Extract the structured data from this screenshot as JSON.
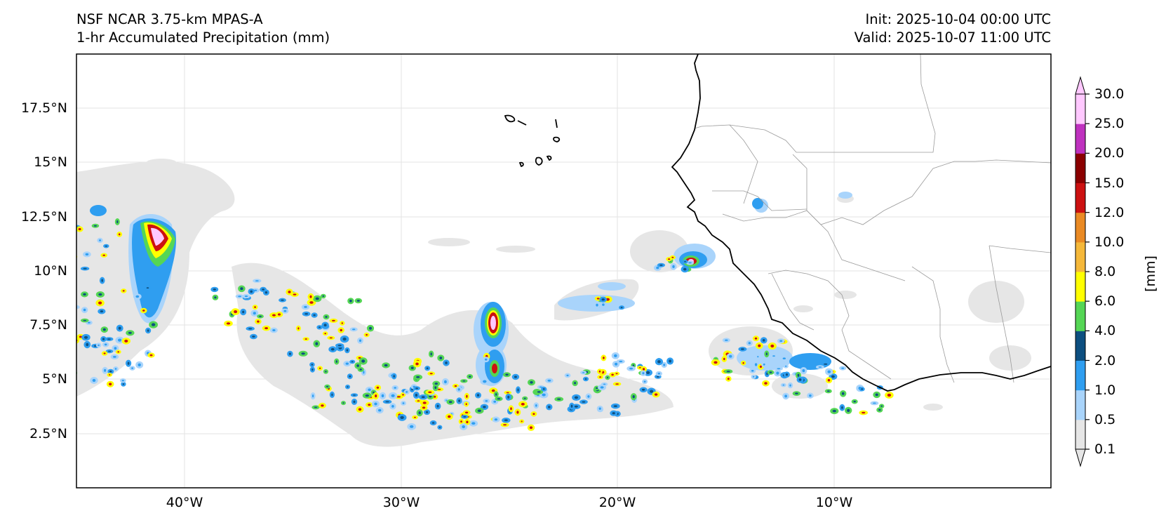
{
  "header": {
    "left_line1": "NSF NCAR 3.75-km MPAS-A",
    "left_line2": "1-hr Accumulated Precipitation (mm)",
    "right_line1": "Init: 2025-10-04 00:00 UTC",
    "right_line2": "Valid: 2025-10-07 11:00 UTC"
  },
  "map": {
    "projection": "PlateCarree",
    "extent": {
      "lon_min": -45,
      "lon_max": 0,
      "lat_min": 0,
      "lat_max": 20
    },
    "gridlines": "on",
    "lat_ticks": [
      "2.5°N",
      "5°N",
      "7.5°N",
      "10°N",
      "12.5°N",
      "15°N",
      "17.5°N"
    ],
    "lon_ticks": [
      "40°W",
      "30°W",
      "20°W",
      "10°W"
    ]
  },
  "colorbar": {
    "units_label": "[mm]",
    "levels": [
      "0.1",
      "0.5",
      "1.0",
      "2.0",
      "4.0",
      "6.0",
      "8.0",
      "10.0",
      "12.0",
      "15.0",
      "20.0",
      "25.0",
      "30.0"
    ],
    "colors": [
      "#e6e6e6",
      "#a9d4fb",
      "#2f9ef0",
      "#0d4f80",
      "#55d655",
      "#ffff00",
      "#f5b83a",
      "#ea8a24",
      "#cc1111",
      "#8b0000",
      "#bf32bf",
      "#ffc8ff"
    ],
    "extend": "both"
  },
  "colors": {
    "coastline": "#000000",
    "borders": "#999999",
    "gridlines": "#e0e0e0"
  }
}
